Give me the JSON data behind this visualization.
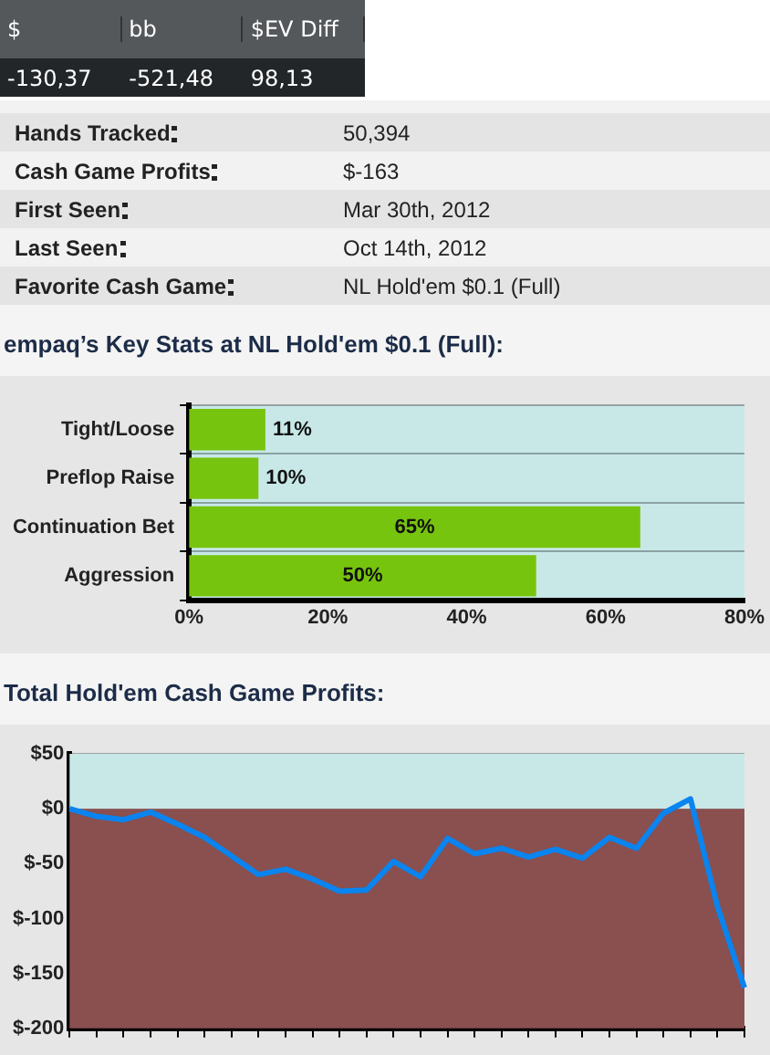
{
  "chart_data": [
    {
      "type": "other",
      "categories": [
        "$",
        "bb",
        "$EV Diff"
      ],
      "value_labels": [
        "-130,37",
        "-521,48",
        "98,13"
      ]
    },
    {
      "type": "other",
      "categories": [
        "Hands Tracked",
        "Cash Game Profits",
        "First Seen",
        "Last Seen",
        "Favorite Cash Game"
      ],
      "value_labels": [
        "50,394",
        "$-163",
        "Mar 30th, 2012",
        "Oct 14th, 2012",
        "NL Hold'em $0.1 (Full)"
      ]
    },
    {
      "type": "bar",
      "title": "empaq’s Key Stats at NL Hold'em $0.1 (Full):",
      "orientation": "horizontal",
      "categories": [
        "Tight/Loose",
        "Preflop Raise",
        "Continuation Bet",
        "Aggression"
      ],
      "values": [
        11,
        10,
        65,
        50
      ],
      "value_labels": [
        "11%",
        "10%",
        "65%",
        "50%"
      ],
      "color": "#77c40e",
      "xlim": [
        0,
        80
      ],
      "xticks": [
        {
          "value": 0,
          "label": "0%"
        },
        {
          "value": 20,
          "label": "20%"
        },
        {
          "value": 40,
          "label": "40%"
        },
        {
          "value": 60,
          "label": "60%"
        },
        {
          "value": 80,
          "label": "80%"
        }
      ],
      "grid": "y",
      "legend": false
    },
    {
      "type": "line",
      "title": "Total Hold'em Cash Game Profits:",
      "categories": [
        null,
        null,
        null,
        null,
        null,
        null,
        null,
        null,
        null,
        null,
        null,
        null,
        null,
        null,
        null,
        null,
        null,
        null,
        null,
        null,
        null,
        null,
        null,
        null,
        null,
        null
      ],
      "values": [
        0,
        -7,
        -10,
        -3,
        -14,
        -26,
        -43,
        -60,
        -55,
        -64,
        -75,
        -74,
        -48,
        -62,
        -27,
        -41,
        -36,
        -44,
        -37,
        -45,
        -26,
        -36,
        -4,
        9,
        -89,
        -163
      ],
      "color": "#0a84ee",
      "ylim": [
        -200,
        50
      ],
      "yticks": [
        {
          "value": 50,
          "label": "$50"
        },
        {
          "value": 0,
          "label": "$0"
        },
        {
          "value": -50,
          "label": "$-50"
        },
        {
          "value": -100,
          "label": "$-100"
        },
        {
          "value": -150,
          "label": "$-150"
        },
        {
          "value": -200,
          "label": "$-200"
        }
      ],
      "bands": [
        {
          "axis": "y",
          "from": 0,
          "to": 50,
          "color": "#c8e8e8"
        },
        {
          "axis": "y",
          "from": -200,
          "to": 0,
          "color": "#8a4f4f"
        }
      ],
      "grid": "y",
      "tick_labels": "y",
      "legend": false
    }
  ]
}
